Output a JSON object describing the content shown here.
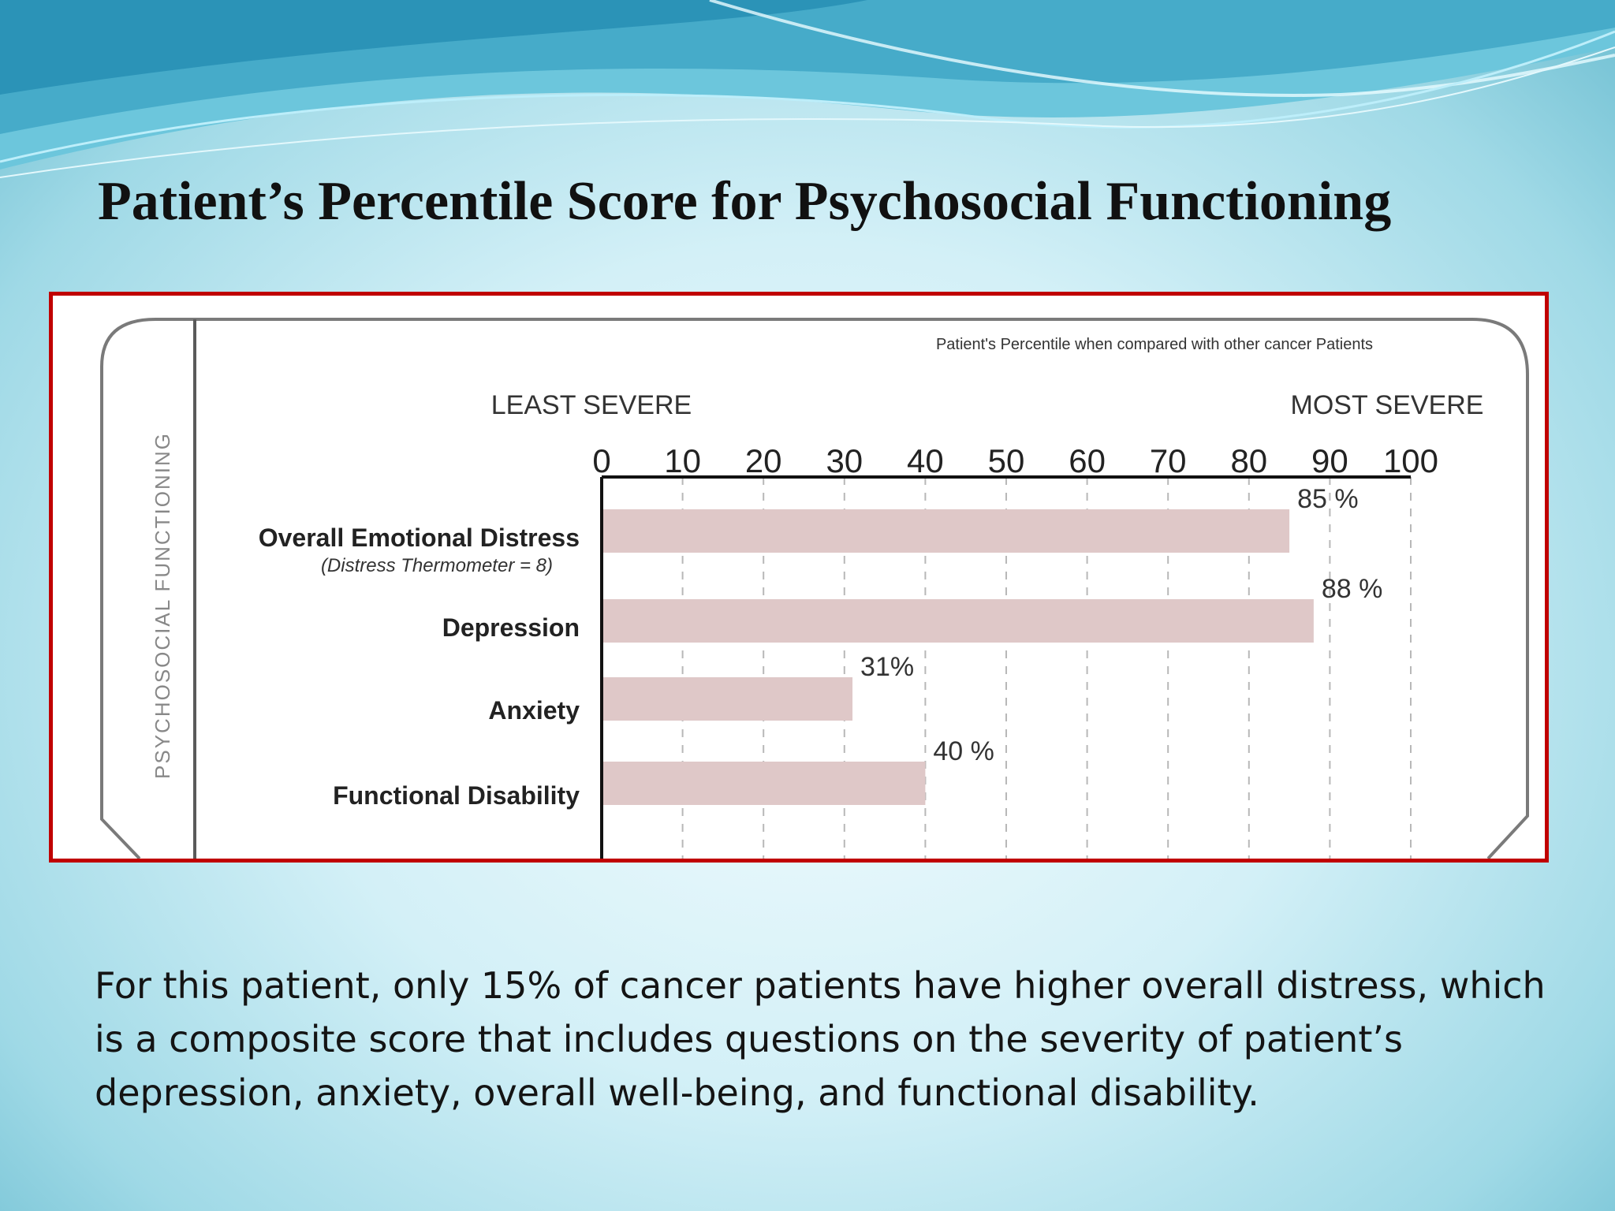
{
  "slide": {
    "title": "Patient’s Percentile Score for Psychosocial Functioning",
    "caption": "For this patient, only 15% of cancer patients have higher overall distress, which is a composite score that includes questions on the severity of patient’s depression, anxiety, overall well-being, and functional disability."
  },
  "colors": {
    "frame": "#c00000",
    "bar": "#dfc8c8",
    "panel_line": "#7a7a7a"
  },
  "chart_data": {
    "type": "bar",
    "orientation": "horizontal",
    "title": "Patient's Percentile when compared with other cancer Patients",
    "side_label": "PSYCHOSOCIAL FUNCTIONING",
    "scale_left_label": "LEAST SEVERE",
    "scale_right_label": "MOST SEVERE",
    "xlim": [
      0,
      100
    ],
    "ticks": [
      0,
      10,
      20,
      30,
      40,
      50,
      60,
      70,
      80,
      90,
      100
    ],
    "grid": "vertical dashed",
    "categories": [
      {
        "label": "Overall Emotional Distress",
        "sublabel": "(Distress Thermometer  = 8)"
      },
      {
        "label": "Depression"
      },
      {
        "label": "Anxiety"
      },
      {
        "label": "Functional Disability"
      }
    ],
    "values": [
      85,
      88,
      31,
      40
    ],
    "data_labels": [
      "85 %",
      "88 %",
      "31%",
      "40 %"
    ]
  }
}
